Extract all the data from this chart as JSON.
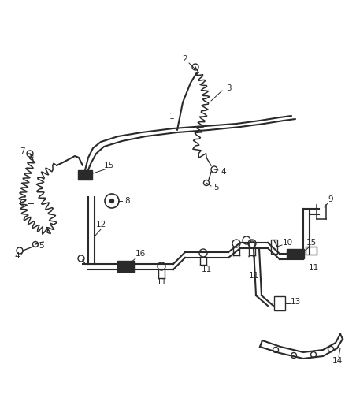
{
  "bg_color": "#ffffff",
  "line_color": "#2a2a2a",
  "figsize": [
    4.38,
    5.33
  ],
  "dpi": 100
}
